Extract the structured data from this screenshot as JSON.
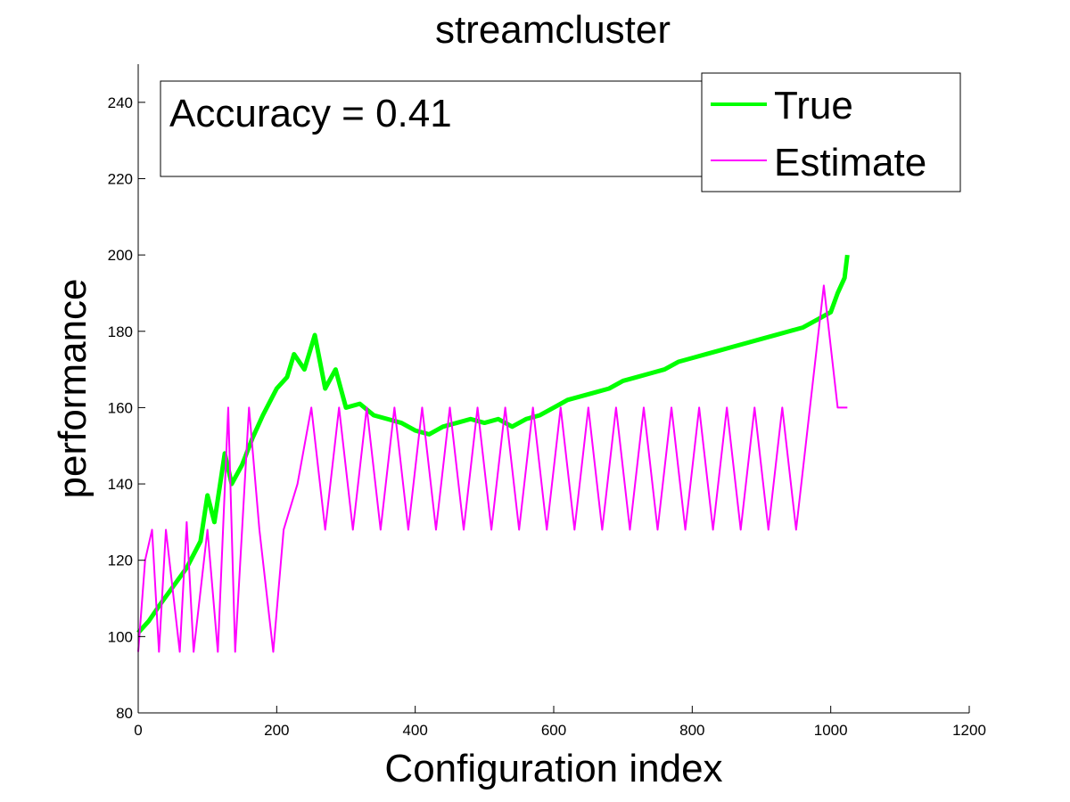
{
  "chart_data": {
    "type": "line",
    "title": "streamcluster",
    "xlabel": "Configuration index",
    "ylabel": "performance",
    "xlim": [
      0,
      1200
    ],
    "ylim": [
      80,
      250
    ],
    "xticks": [
      0,
      200,
      400,
      600,
      800,
      1000,
      1200
    ],
    "yticks": [
      80,
      100,
      120,
      140,
      160,
      180,
      200,
      220,
      240
    ],
    "grid": false,
    "legend_position": "top-right",
    "annotation": "Accuracy = 0.41",
    "colors": {
      "True": "#00ff00",
      "Estimate": "#ff00ff",
      "residual": "#808080"
    },
    "series": [
      {
        "name": "True",
        "x": [
          0,
          15,
          30,
          50,
          70,
          90,
          100,
          110,
          125,
          135,
          150,
          165,
          180,
          200,
          215,
          225,
          240,
          255,
          270,
          285,
          300,
          320,
          340,
          360,
          380,
          400,
          420,
          440,
          460,
          480,
          500,
          520,
          540,
          560,
          580,
          600,
          620,
          640,
          660,
          680,
          700,
          720,
          740,
          760,
          780,
          800,
          820,
          840,
          860,
          880,
          900,
          920,
          940,
          960,
          980,
          1000,
          1010,
          1020,
          1024
        ],
        "y": [
          101,
          104,
          108,
          113,
          118,
          125,
          137,
          130,
          148,
          140,
          145,
          152,
          158,
          165,
          168,
          174,
          170,
          179,
          165,
          170,
          160,
          161,
          158,
          157,
          156,
          154,
          153,
          155,
          156,
          157,
          156,
          157,
          155,
          157,
          158,
          160,
          162,
          163,
          164,
          165,
          167,
          168,
          169,
          170,
          172,
          173,
          174,
          175,
          176,
          177,
          178,
          179,
          180,
          181,
          183,
          185,
          190,
          194,
          200
        ]
      },
      {
        "name": "Estimate",
        "x": [
          0,
          10,
          20,
          30,
          40,
          60,
          70,
          80,
          100,
          115,
          130,
          140,
          160,
          175,
          195,
          210,
          230,
          250,
          270,
          290,
          310,
          330,
          350,
          370,
          390,
          410,
          430,
          450,
          470,
          490,
          510,
          530,
          550,
          570,
          590,
          610,
          630,
          650,
          670,
          690,
          710,
          730,
          750,
          770,
          790,
          810,
          830,
          850,
          870,
          890,
          910,
          930,
          950,
          970,
          990,
          1010,
          1024
        ],
        "y": [
          96,
          120,
          128,
          96,
          128,
          96,
          130,
          96,
          128,
          96,
          160,
          96,
          160,
          128,
          96,
          128,
          140,
          160,
          128,
          160,
          128,
          160,
          128,
          160,
          128,
          160,
          128,
          160,
          128,
          160,
          128,
          160,
          128,
          160,
          128,
          160,
          128,
          160,
          128,
          160,
          128,
          160,
          128,
          160,
          128,
          160,
          128,
          160,
          128,
          160,
          128,
          160,
          128,
          160,
          192,
          160,
          160
        ]
      }
    ]
  }
}
